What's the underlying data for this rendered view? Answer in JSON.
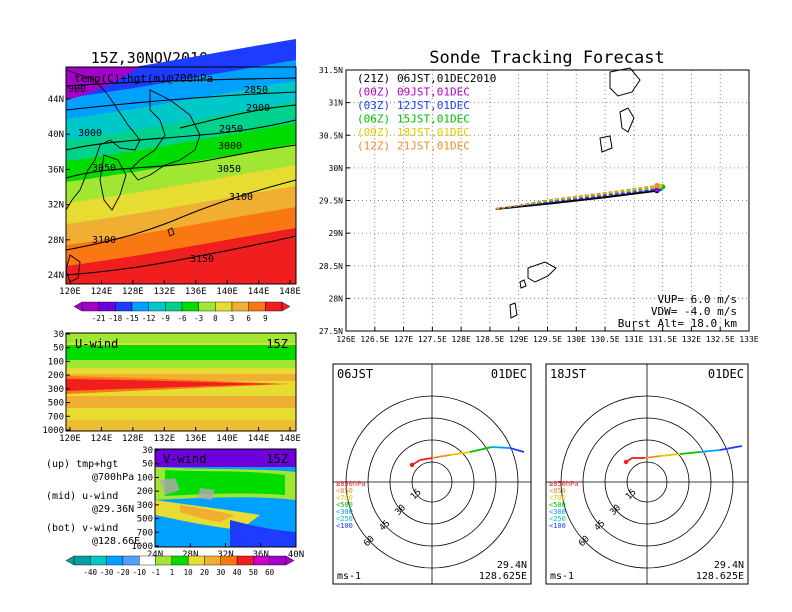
{
  "colors": {
    "purple": "#a000c8",
    "violet": "#6e00dc",
    "blue": "#1e3cff",
    "sky": "#00a0ff",
    "cyan": "#00c8c8",
    "teal": "#00d28c",
    "green": "#00dc00",
    "lime": "#a0e632",
    "yellow": "#e6dc32",
    "amber": "#f0af32",
    "orange": "#fa7814",
    "red": "#f01e1e",
    "magenta": "#c800c8",
    "trackBlack": "#000000",
    "trackPurple": "#b400c8",
    "trackBlue": "#1e3cff",
    "trackGreen": "#00c000",
    "trackYellow": "#e6c800",
    "trackOrange": "#f08c28"
  },
  "panels": {
    "map": {
      "title": "15Z,30NOV2010 (init)",
      "label": "temp(C)+hgt(m)@700hPa",
      "yticks": [
        "44N",
        "40N",
        "36N",
        "32N",
        "28N",
        "24N"
      ],
      "xticks": [
        "120E",
        "124E",
        "128E",
        "132E",
        "136E",
        "140E",
        "144E",
        "148E"
      ],
      "contours": [
        "2850",
        "2900",
        "2950",
        "3000",
        "3050",
        "3100",
        "3150",
        "900",
        "3000",
        "3050",
        "3100"
      ],
      "colorbar": [
        "-21",
        "-18",
        "-15",
        "-12",
        "-9",
        "-6",
        "-3",
        "0",
        "3",
        "6",
        "9"
      ]
    },
    "uwind": {
      "label": "U-wind",
      "time": "15Z",
      "yticks": [
        "30",
        "50",
        "100",
        "200",
        "300",
        "500",
        "700",
        "1000"
      ],
      "xticks": [
        "120E",
        "124E",
        "128E",
        "132E",
        "136E",
        "140E",
        "144E",
        "148E"
      ]
    },
    "vwind": {
      "label": "V-wind",
      "time": "15Z",
      "yticks": [
        "30",
        "50",
        "100",
        "200",
        "300",
        "500",
        "700",
        "1000"
      ],
      "xticks": [
        "24N",
        "28N",
        "32N",
        "36N",
        "40N"
      ],
      "colorbar": [
        "-40",
        "-30",
        "-20",
        "-10",
        "-1",
        "1",
        "10",
        "20",
        "30",
        "40",
        "50",
        "60"
      ]
    },
    "notes": [
      {
        "a": "(up) tmp+hgt",
        "b": "@700hPa"
      },
      {
        "a": "(mid) u-wind",
        "b": "@29.36N"
      },
      {
        "a": "(bot) v-wind",
        "b": "@128.66E"
      }
    ]
  },
  "chart_data": {
    "type": "line",
    "title": "Sonde Tracking Forecast",
    "xlim": [
      126,
      133
    ],
    "ylim": [
      27.5,
      31.5
    ],
    "xticks": [
      "126E",
      "126.5E",
      "127E",
      "127.5E",
      "128E",
      "128.5E",
      "129E",
      "129.5E",
      "130E",
      "130.5E",
      "131E",
      "131.5E",
      "132E",
      "132.5E",
      "133E"
    ],
    "yticks": [
      "31.5N",
      "31N",
      "30.5N",
      "30N",
      "29.5N",
      "29N",
      "28.5N",
      "28N",
      "27.5N"
    ],
    "legend": [
      {
        "code": "(21Z)",
        "text": "06JST,01DEC2010",
        "color": "#000000"
      },
      {
        "code": "(00Z)",
        "text": "09JST,01DEC",
        "color": "#b400c8"
      },
      {
        "code": "(03Z)",
        "text": "12JST,01DEC",
        "color": "#1e3cff"
      },
      {
        "code": "(06Z)",
        "text": "15JST,01DEC",
        "color": "#00c000"
      },
      {
        "code": "(09Z)",
        "text": "18JST,01DEC",
        "color": "#e6c800"
      },
      {
        "code": "(12Z)",
        "text": "21JST,01DEC",
        "color": "#f08c28"
      }
    ],
    "series": [
      {
        "name": "06JST",
        "x": [
          128.6,
          129.6,
          130.5,
          131.4
        ],
        "y": [
          29.37,
          29.46,
          29.55,
          29.65
        ]
      },
      {
        "name": "09JST",
        "x": [
          128.6,
          129.6,
          130.5,
          131.4
        ],
        "y": [
          29.37,
          29.48,
          29.57,
          29.67
        ]
      },
      {
        "name": "12JST",
        "x": [
          128.6,
          129.6,
          130.5,
          131.45
        ],
        "y": [
          29.37,
          29.48,
          29.58,
          29.68
        ]
      },
      {
        "name": "15JST",
        "x": [
          128.6,
          129.6,
          130.5,
          131.5
        ],
        "y": [
          29.37,
          29.5,
          29.6,
          29.71
        ]
      },
      {
        "name": "18JST",
        "x": [
          128.6,
          129.6,
          130.5,
          131.45
        ],
        "y": [
          29.37,
          29.51,
          29.61,
          29.72
        ]
      },
      {
        "name": "21JST",
        "x": [
          128.6,
          129.6,
          130.5,
          131.4
        ],
        "y": [
          29.37,
          29.52,
          29.62,
          29.73
        ]
      }
    ],
    "info": [
      "VUP= 6.0 m/s",
      "VDW= -4.0 m/s",
      "Burst Alt= 18.0 km"
    ]
  },
  "polar": [
    {
      "time": "06JST",
      "date": "01DEC",
      "lat": "29.4N",
      "lon": "128.625E",
      "unit": "ms-1",
      "rings": [
        "15",
        "30",
        "45",
        "60"
      ]
    },
    {
      "time": "18JST",
      "date": "01DEC",
      "lat": "29.4N",
      "lon": "128.625E",
      "unit": "ms-1",
      "rings": [
        "15",
        "30",
        "45",
        "60"
      ]
    }
  ],
  "polar_legend": [
    "≥850hPa",
    "<850",
    "<700",
    "<500",
    "<300",
    "<250",
    "<100"
  ]
}
